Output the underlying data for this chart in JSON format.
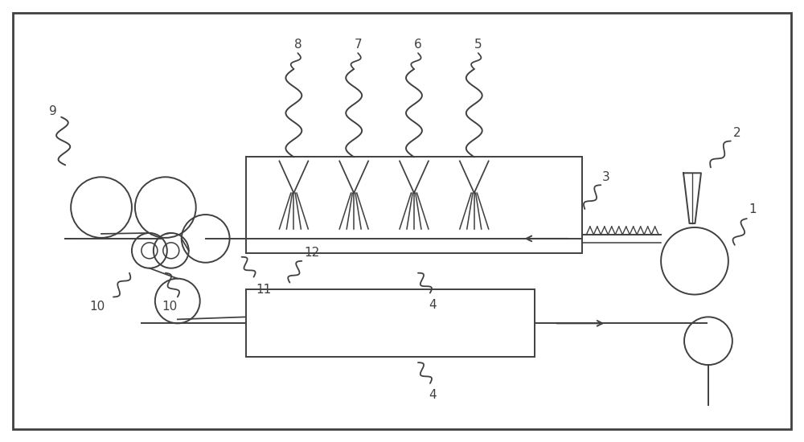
{
  "bg_color": "#ffffff",
  "line_color": "#404040",
  "line_width": 1.4,
  "fig_width": 10.0,
  "fig_height": 5.5
}
